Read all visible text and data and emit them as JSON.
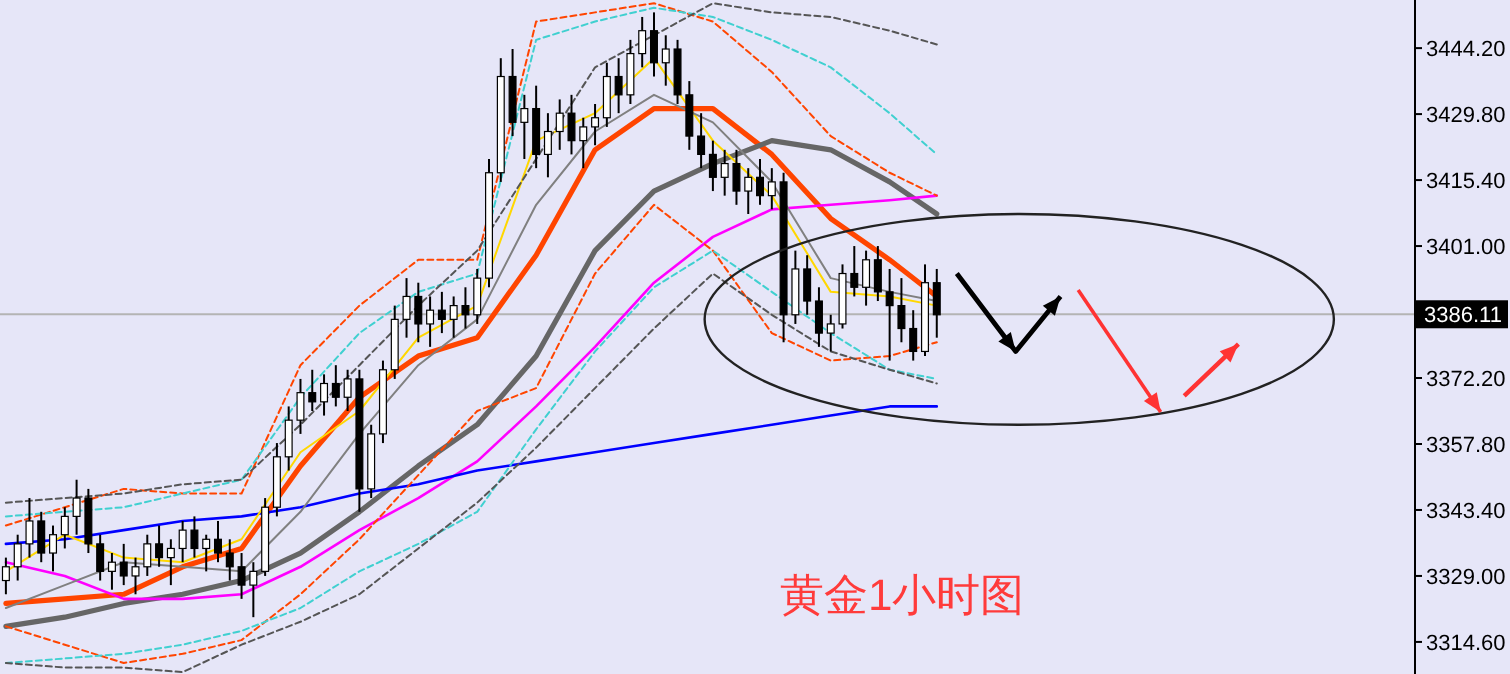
{
  "chart_data": {
    "type": "candlestick",
    "categories": [
      null,
      null,
      null,
      null,
      null,
      null,
      null,
      null,
      null,
      null,
      null,
      null,
      null,
      null,
      null,
      null,
      null,
      null,
      null,
      null,
      null,
      null,
      null,
      null,
      null,
      null,
      null,
      null,
      null,
      null,
      null,
      null,
      null,
      null,
      null,
      null,
      null,
      null,
      null,
      null,
      null,
      null,
      null,
      null,
      null,
      null,
      null,
      null,
      null,
      null,
      null,
      null,
      null,
      null,
      null,
      null,
      null,
      null,
      null,
      null,
      null,
      null,
      null,
      null,
      null,
      null,
      null,
      null,
      null,
      null,
      null,
      null,
      null,
      null,
      null,
      null,
      null,
      null,
      null,
      null,
      null,
      null,
      null,
      null,
      null,
      null,
      null,
      null,
      null,
      null,
      null,
      null,
      null,
      null,
      null,
      null,
      null,
      null,
      null,
      null,
      null,
      null,
      null,
      null,
      null,
      null,
      null,
      null,
      null,
      null,
      null,
      null,
      null,
      null,
      null,
      null,
      null,
      null,
      null,
      null
    ],
    "ohlc": [
      [
        3328,
        3333,
        3325,
        3331
      ],
      [
        3331,
        3338,
        3328,
        3336
      ],
      [
        3336,
        3346,
        3333,
        3341
      ],
      [
        3341,
        3343,
        3332,
        3334
      ],
      [
        3334,
        3340,
        3330,
        3338
      ],
      [
        3338,
        3344,
        3335,
        3342
      ],
      [
        3342,
        3350,
        3338,
        3346
      ],
      [
        3346,
        3348,
        3334,
        3336
      ],
      [
        3336,
        3338,
        3328,
        3330
      ],
      [
        3330,
        3334,
        3326,
        3332
      ],
      [
        3332,
        3336,
        3327,
        3329
      ],
      [
        3329,
        3333,
        3325,
        3331
      ],
      [
        3331,
        3338,
        3329,
        3336
      ],
      [
        3336,
        3340,
        3331,
        3333
      ],
      [
        3333,
        3337,
        3327,
        3335
      ],
      [
        3335,
        3341,
        3332,
        3339
      ],
      [
        3339,
        3342,
        3333,
        3335
      ],
      [
        3335,
        3338,
        3330,
        3337
      ],
      [
        3337,
        3341,
        3332,
        3334
      ],
      [
        3334,
        3337,
        3328,
        3331
      ],
      [
        3331,
        3334,
        3324,
        3327
      ],
      [
        3327,
        3332,
        3320,
        3330
      ],
      [
        3330,
        3346,
        3329,
        3344
      ],
      [
        3344,
        3358,
        3342,
        3355
      ],
      [
        3355,
        3366,
        3352,
        3363
      ],
      [
        3363,
        3372,
        3360,
        3369
      ],
      [
        3369,
        3374,
        3365,
        3367
      ],
      [
        3367,
        3373,
        3364,
        3371
      ],
      [
        3371,
        3375,
        3366,
        3368
      ],
      [
        3368,
        3374,
        3365,
        3372
      ],
      [
        3372,
        3374,
        3343,
        3348
      ],
      [
        3348,
        3362,
        3346,
        3360
      ],
      [
        3360,
        3376,
        3358,
        3374
      ],
      [
        3374,
        3388,
        3372,
        3385
      ],
      [
        3385,
        3394,
        3381,
        3390
      ],
      [
        3390,
        3393,
        3380,
        3384
      ],
      [
        3384,
        3390,
        3379,
        3387
      ],
      [
        3387,
        3391,
        3382,
        3385
      ],
      [
        3385,
        3390,
        3381,
        3388
      ],
      [
        3388,
        3392,
        3383,
        3386
      ],
      [
        3386,
        3396,
        3384,
        3394
      ],
      [
        3394,
        3420,
        3392,
        3417
      ],
      [
        3417,
        3442,
        3415,
        3438
      ],
      [
        3438,
        3444,
        3425,
        3428
      ],
      [
        3428,
        3434,
        3420,
        3431
      ],
      [
        3431,
        3436,
        3418,
        3421
      ],
      [
        3421,
        3430,
        3416,
        3426
      ],
      [
        3426,
        3433,
        3422,
        3430
      ],
      [
        3430,
        3434,
        3421,
        3424
      ],
      [
        3424,
        3429,
        3418,
        3427
      ],
      [
        3427,
        3432,
        3423,
        3429
      ],
      [
        3429,
        3441,
        3427,
        3438
      ],
      [
        3438,
        3442,
        3430,
        3434
      ],
      [
        3434,
        3446,
        3432,
        3443
      ],
      [
        3443,
        3451,
        3440,
        3448
      ],
      [
        3448,
        3452,
        3438,
        3441
      ],
      [
        3441,
        3447,
        3436,
        3444
      ],
      [
        3444,
        3446,
        3432,
        3434
      ],
      [
        3434,
        3437,
        3422,
        3425
      ],
      [
        3425,
        3430,
        3418,
        3421
      ],
      [
        3421,
        3424,
        3413,
        3416
      ],
      [
        3416,
        3422,
        3412,
        3419
      ],
      [
        3419,
        3422,
        3410,
        3413
      ],
      [
        3413,
        3418,
        3408,
        3416
      ],
      [
        3416,
        3420,
        3410,
        3412
      ],
      [
        3412,
        3418,
        3409,
        3415
      ],
      [
        3415,
        3417,
        3380,
        3386
      ],
      [
        3386,
        3400,
        3384,
        3396
      ],
      [
        3396,
        3399,
        3386,
        3389
      ],
      [
        3389,
        3392,
        3379,
        3382
      ],
      [
        3382,
        3386,
        3378,
        3384
      ],
      [
        3384,
        3397,
        3383,
        3395
      ],
      [
        3395,
        3401,
        3390,
        3392
      ],
      [
        3392,
        3400,
        3388,
        3398
      ],
      [
        3398,
        3401,
        3389,
        3391
      ],
      [
        3391,
        3396,
        3376,
        3388
      ],
      [
        3388,
        3394,
        3380,
        3383
      ],
      [
        3383,
        3387,
        3376,
        3378
      ],
      [
        3378,
        3397,
        3377,
        3393
      ],
      [
        3393,
        3396,
        3381,
        3386
      ],
      null,
      null,
      null,
      null,
      null,
      null,
      null,
      null,
      null,
      null,
      null,
      null,
      null,
      null,
      null,
      null,
      null,
      null,
      null,
      null,
      null,
      null,
      null,
      null,
      null,
      null,
      null,
      null,
      null,
      null,
      null,
      null,
      null,
      null,
      null,
      null,
      null,
      null,
      null,
      null
    ],
    "series": [
      {
        "type": "line",
        "color": "#ff4500",
        "line_style": "solid",
        "values": [
          3323,
          null,
          null,
          null,
          null,
          3324,
          null,
          null,
          null,
          null,
          3325,
          null,
          null,
          null,
          null,
          3331,
          null,
          null,
          null,
          null,
          3335,
          null,
          null,
          null,
          null,
          3353,
          null,
          null,
          null,
          null,
          3368,
          null,
          null,
          null,
          null,
          3377,
          null,
          null,
          null,
          null,
          3381,
          null,
          null,
          null,
          null,
          3399,
          null,
          null,
          null,
          null,
          3422,
          null,
          null,
          null,
          null,
          3431,
          null,
          null,
          null,
          null,
          3431,
          null,
          null,
          null,
          null,
          3421,
          null,
          null,
          null,
          null,
          3407,
          null,
          null,
          null,
          null,
          3398,
          null,
          null,
          null,
          3390,
          null,
          null,
          null,
          null,
          null,
          null,
          null,
          null,
          null,
          null,
          null,
          null,
          null,
          null,
          null,
          null,
          null,
          null,
          null,
          null,
          null,
          null,
          null,
          null,
          null,
          null,
          null,
          null,
          null,
          null,
          null,
          null,
          null,
          null,
          null,
          null,
          null,
          null,
          null,
          null
        ]
      },
      {
        "type": "line",
        "color": "#666666",
        "line_style": "solid",
        "values": [
          3318,
          null,
          null,
          null,
          null,
          3320,
          null,
          null,
          null,
          null,
          3323,
          null,
          null,
          null,
          null,
          3325,
          null,
          null,
          null,
          null,
          3328,
          null,
          null,
          null,
          null,
          3334,
          null,
          null,
          null,
          null,
          3343,
          null,
          null,
          null,
          null,
          3353,
          null,
          null,
          null,
          null,
          3362,
          null,
          null,
          null,
          null,
          3377,
          null,
          null,
          null,
          null,
          3400,
          null,
          null,
          null,
          null,
          3413,
          null,
          null,
          null,
          null,
          3419,
          null,
          null,
          null,
          null,
          3424,
          null,
          null,
          null,
          null,
          3422,
          null,
          null,
          null,
          null,
          3415,
          null,
          null,
          null,
          3408,
          null,
          null,
          null,
          null,
          null,
          null,
          null,
          null,
          null,
          null,
          null,
          null,
          null,
          null,
          null,
          null,
          null,
          null,
          null,
          null,
          null,
          null,
          null,
          null,
          null,
          null,
          null,
          null,
          null,
          null,
          null,
          null,
          null,
          null,
          null,
          null,
          null,
          null,
          null,
          null
        ]
      },
      {
        "type": "line",
        "color": "#ff00ff",
        "line_style": "solid",
        "values": [
          3332,
          null,
          null,
          null,
          null,
          3329,
          null,
          null,
          null,
          null,
          3324,
          null,
          null,
          null,
          null,
          3324,
          null,
          null,
          null,
          null,
          3325,
          null,
          null,
          null,
          null,
          3331,
          null,
          null,
          null,
          null,
          3339,
          null,
          null,
          null,
          null,
          3346,
          null,
          null,
          null,
          null,
          3354,
          null,
          null,
          null,
          null,
          3366,
          null,
          null,
          null,
          null,
          3379,
          null,
          null,
          null,
          null,
          3393,
          null,
          null,
          null,
          null,
          3403,
          null,
          null,
          null,
          null,
          3409,
          null,
          null,
          null,
          null,
          3410,
          null,
          null,
          null,
          null,
          3411,
          null,
          null,
          null,
          3412,
          null,
          null,
          null,
          null,
          null,
          null,
          null,
          null,
          null,
          null,
          null,
          null,
          null,
          null,
          null,
          null,
          null,
          null,
          null,
          null,
          null,
          null,
          null,
          null,
          null,
          null,
          null,
          null,
          null,
          null,
          null,
          null,
          null,
          null,
          null,
          null,
          null,
          null,
          null,
          null
        ]
      },
      {
        "type": "line",
        "color": "#0000ff",
        "line_style": "solid",
        "values": [
          3336,
          null,
          null,
          null,
          null,
          3337,
          null,
          null,
          null,
          null,
          3339,
          null,
          null,
          null,
          null,
          3341,
          null,
          null,
          null,
          null,
          3342,
          null,
          null,
          null,
          null,
          3344,
          null,
          null,
          null,
          null,
          3347,
          null,
          null,
          null,
          null,
          3349,
          null,
          null,
          null,
          null,
          3352,
          null,
          null,
          null,
          null,
          3354,
          null,
          null,
          null,
          null,
          3356,
          null,
          null,
          null,
          null,
          3358,
          null,
          null,
          null,
          null,
          3360,
          null,
          null,
          null,
          null,
          3362,
          null,
          null,
          null,
          null,
          3364,
          null,
          null,
          null,
          null,
          3366,
          null,
          null,
          null,
          3366,
          null,
          null,
          null,
          null,
          null,
          null,
          null,
          null,
          null,
          null,
          null,
          null,
          null,
          null,
          null,
          null,
          null,
          null,
          null,
          null,
          null,
          null,
          null,
          null,
          null,
          null,
          null,
          null,
          null,
          null,
          null,
          null,
          null,
          null,
          null,
          null,
          null,
          null,
          null,
          null
        ]
      },
      {
        "type": "line",
        "color": "#ffd700",
        "line_style": "solid",
        "values": [
          3330,
          null,
          null,
          null,
          null,
          3338,
          null,
          null,
          null,
          null,
          3333,
          null,
          null,
          null,
          null,
          3332,
          null,
          null,
          null,
          null,
          3337,
          null,
          null,
          null,
          null,
          3356,
          null,
          null,
          null,
          null,
          3365,
          null,
          null,
          null,
          null,
          3381,
          null,
          null,
          null,
          null,
          3388,
          null,
          null,
          null,
          null,
          3424,
          null,
          null,
          null,
          null,
          3430,
          null,
          null,
          null,
          null,
          3442,
          null,
          null,
          null,
          null,
          3424,
          null,
          null,
          null,
          null,
          3412,
          null,
          null,
          null,
          null,
          3391,
          null,
          null,
          null,
          null,
          3390,
          null,
          null,
          null,
          3388,
          null,
          null,
          null,
          null,
          null,
          null,
          null,
          null,
          null,
          null,
          null,
          null,
          null,
          null,
          null,
          null,
          null,
          null,
          null,
          null,
          null,
          null,
          null,
          null,
          null,
          null,
          null,
          null,
          null,
          null,
          null,
          null,
          null,
          null,
          null,
          null,
          null,
          null,
          null,
          null
        ]
      },
      {
        "type": "line",
        "color": "#808080",
        "line_style": "solid",
        "values": [
          3322,
          null,
          null,
          null,
          null,
          3327,
          null,
          null,
          null,
          null,
          3332,
          null,
          null,
          null,
          null,
          3331,
          null,
          null,
          null,
          null,
          3330,
          null,
          null,
          null,
          null,
          3343,
          null,
          null,
          null,
          null,
          3360,
          null,
          null,
          null,
          null,
          3375,
          null,
          null,
          null,
          null,
          3385,
          null,
          null,
          null,
          null,
          3410,
          null,
          null,
          null,
          null,
          3426,
          null,
          null,
          null,
          null,
          3434,
          null,
          null,
          null,
          null,
          3428,
          null,
          null,
          null,
          null,
          3415,
          null,
          null,
          null,
          null,
          3394,
          null,
          null,
          null,
          null,
          3391,
          null,
          null,
          null,
          3389,
          null,
          null,
          null,
          null,
          null,
          null,
          null,
          null,
          null,
          null,
          null,
          null,
          null,
          null,
          null,
          null,
          null,
          null,
          null,
          null,
          null,
          null,
          null,
          null,
          null,
          null,
          null,
          null,
          null,
          null,
          null,
          null,
          null,
          null,
          null,
          null,
          null,
          null,
          null,
          null
        ]
      },
      {
        "type": "line",
        "color": "#ff4500",
        "line_style": "dashed",
        "values": [
          3340,
          null,
          null,
          null,
          null,
          3344,
          null,
          null,
          null,
          null,
          3348,
          null,
          null,
          null,
          null,
          3347,
          null,
          null,
          null,
          null,
          3347,
          null,
          null,
          null,
          null,
          3375,
          null,
          null,
          null,
          null,
          3388,
          null,
          null,
          null,
          null,
          3398,
          null,
          null,
          null,
          null,
          3398,
          null,
          null,
          null,
          null,
          3450,
          null,
          null,
          null,
          null,
          3452,
          null,
          null,
          null,
          null,
          3454,
          null,
          null,
          null,
          null,
          3450,
          null,
          null,
          null,
          null,
          3439,
          null,
          null,
          null,
          null,
          3425,
          null,
          null,
          null,
          null,
          3417,
          null,
          null,
          null,
          3412,
          null,
          null,
          null,
          null,
          null,
          null,
          null,
          null,
          null,
          null,
          null,
          null,
          null,
          null,
          null,
          null,
          null,
          null,
          null,
          null,
          null,
          null,
          null,
          null,
          null,
          null,
          null,
          null,
          null,
          null,
          null,
          null,
          null,
          null,
          null,
          null,
          null,
          null,
          null,
          null
        ]
      },
      {
        "type": "line",
        "color": "#ff4500",
        "line_style": "dashed",
        "values": [
          3318,
          null,
          null,
          null,
          null,
          3314,
          null,
          null,
          null,
          null,
          3310,
          null,
          null,
          null,
          null,
          3312,
          null,
          null,
          null,
          null,
          3315,
          null,
          null,
          null,
          null,
          3325,
          null,
          null,
          null,
          null,
          3337,
          null,
          null,
          null,
          null,
          3351,
          null,
          null,
          null,
          null,
          3365,
          null,
          null,
          null,
          null,
          3370,
          null,
          null,
          null,
          null,
          3395,
          null,
          null,
          null,
          null,
          3410,
          null,
          null,
          null,
          null,
          3400,
          null,
          null,
          null,
          null,
          3382,
          null,
          null,
          null,
          null,
          3376,
          null,
          null,
          null,
          null,
          3377,
          null,
          null,
          null,
          3380,
          null,
          null,
          null,
          null,
          null,
          null,
          null,
          null,
          null,
          null,
          null,
          null,
          null,
          null,
          null,
          null,
          null,
          null,
          null,
          null,
          null,
          null,
          null,
          null,
          null,
          null,
          null,
          null,
          null,
          null,
          null,
          null,
          null,
          null,
          null,
          null,
          null,
          null,
          null,
          null
        ]
      },
      {
        "type": "line",
        "color": "#40d0d0",
        "line_style": "dashed",
        "values": [
          3342,
          null,
          null,
          null,
          null,
          3343,
          null,
          null,
          null,
          null,
          3344,
          null,
          null,
          null,
          null,
          3347,
          null,
          null,
          null,
          null,
          3350,
          null,
          null,
          null,
          null,
          3368,
          null,
          null,
          null,
          null,
          3382,
          null,
          null,
          null,
          null,
          3391,
          null,
          null,
          null,
          null,
          3395,
          null,
          null,
          null,
          null,
          3446,
          null,
          null,
          null,
          null,
          3450,
          null,
          null,
          null,
          null,
          3453,
          null,
          null,
          null,
          null,
          3451,
          null,
          null,
          null,
          null,
          3446,
          null,
          null,
          null,
          null,
          3440,
          null,
          null,
          null,
          null,
          3430,
          null,
          null,
          null,
          3421,
          null,
          null,
          null,
          null,
          null,
          null,
          null,
          null,
          null,
          null,
          null,
          null,
          null,
          null,
          null,
          null,
          null,
          null,
          null,
          null,
          null,
          null,
          null,
          null,
          null,
          null,
          null,
          null,
          null,
          null,
          null,
          null,
          null,
          null,
          null,
          null,
          null,
          null,
          null,
          null
        ]
      },
      {
        "type": "line",
        "color": "#40d0d0",
        "line_style": "dashed",
        "values": [
          3310,
          null,
          null,
          null,
          null,
          3311,
          null,
          null,
          null,
          null,
          3312,
          null,
          null,
          null,
          null,
          3314,
          null,
          null,
          null,
          null,
          3317,
          null,
          null,
          null,
          null,
          3322,
          null,
          null,
          null,
          null,
          3330,
          null,
          null,
          null,
          null,
          3336,
          null,
          null,
          null,
          null,
          3343,
          null,
          null,
          null,
          null,
          3361,
          null,
          null,
          null,
          null,
          3378,
          null,
          null,
          null,
          null,
          3392,
          null,
          null,
          null,
          null,
          3400,
          null,
          null,
          null,
          null,
          3391,
          null,
          null,
          null,
          null,
          3382,
          null,
          null,
          null,
          null,
          3374,
          null,
          null,
          null,
          3372,
          null,
          null,
          null,
          null,
          null,
          null,
          null,
          null,
          null,
          null,
          null,
          null,
          null,
          null,
          null,
          null,
          null,
          null,
          null,
          null,
          null,
          null,
          null,
          null,
          null,
          null,
          null,
          null,
          null,
          null,
          null,
          null,
          null,
          null,
          null,
          null,
          null,
          null,
          null,
          null
        ]
      },
      {
        "type": "line",
        "color": "#555555",
        "line_style": "dashed",
        "values": [
          3345,
          null,
          null,
          null,
          null,
          3346,
          null,
          null,
          null,
          null,
          3347,
          null,
          null,
          null,
          null,
          3349,
          null,
          null,
          null,
          null,
          3350,
          null,
          null,
          null,
          null,
          3362,
          null,
          null,
          null,
          null,
          3375,
          null,
          null,
          null,
          null,
          3388,
          null,
          null,
          null,
          null,
          3400,
          null,
          null,
          null,
          null,
          3420,
          null,
          null,
          null,
          null,
          3440,
          null,
          null,
          null,
          null,
          3447,
          null,
          null,
          null,
          null,
          3454,
          null,
          null,
          null,
          null,
          3452,
          null,
          null,
          null,
          null,
          3451,
          null,
          null,
          null,
          null,
          3448,
          null,
          null,
          null,
          3445,
          null,
          null,
          null,
          null,
          null,
          null,
          null,
          null,
          null,
          null,
          null,
          null,
          null,
          null,
          null,
          null,
          null,
          null,
          null,
          null,
          null,
          null,
          null,
          null,
          null,
          null,
          null,
          null,
          null,
          null,
          null,
          null,
          null,
          null,
          null,
          null,
          null,
          null,
          null,
          null
        ]
      },
      {
        "type": "line",
        "color": "#555555",
        "line_style": "dashed",
        "values": [
          3310,
          null,
          null,
          null,
          null,
          3309,
          null,
          null,
          null,
          null,
          3309,
          null,
          null,
          null,
          null,
          3308,
          null,
          null,
          null,
          null,
          3314,
          null,
          null,
          null,
          null,
          3319,
          null,
          null,
          null,
          null,
          3325,
          null,
          null,
          null,
          null,
          3335,
          null,
          null,
          null,
          null,
          3345,
          null,
          null,
          null,
          null,
          3357,
          null,
          null,
          null,
          null,
          3370,
          null,
          null,
          null,
          null,
          3383,
          null,
          null,
          null,
          null,
          3395,
          null,
          null,
          null,
          null,
          3386,
          null,
          null,
          null,
          null,
          3378,
          null,
          null,
          null,
          null,
          3374,
          null,
          null,
          null,
          3371,
          null,
          null,
          null,
          null,
          null,
          null,
          null,
          null,
          null,
          null,
          null,
          null,
          null,
          null,
          null,
          null,
          null,
          null,
          null,
          null,
          null,
          null,
          null,
          null,
          null,
          null,
          null,
          null,
          null,
          null,
          null,
          null,
          null,
          null,
          null,
          null,
          null,
          null,
          null,
          null
        ]
      }
    ],
    "ylim": [
      3307.6,
      3454.7
    ],
    "yticks": [
      {
        "value": 3444.2,
        "label": "3444.20"
      },
      {
        "value": 3429.8,
        "label": "3429.80"
      },
      {
        "value": 3415.4,
        "label": "3415.40"
      },
      {
        "value": 3401,
        "label": "3401.00"
      },
      {
        "value": 3372.2,
        "label": "3372.20"
      },
      {
        "value": 3357.8,
        "label": "3357.80"
      },
      {
        "value": 3343.4,
        "label": "3343.40"
      },
      {
        "value": 3329,
        "label": "3329.00"
      },
      {
        "value": 3314.6,
        "label": "3314.60"
      }
    ],
    "ref_lines": [
      {
        "axis": "y",
        "value": 3386.11,
        "label": "3386.11",
        "color": "#b4b4b4"
      }
    ],
    "annotations": [
      "黄金1小时图"
    ],
    "tick_labels": "y",
    "grid": false
  }
}
